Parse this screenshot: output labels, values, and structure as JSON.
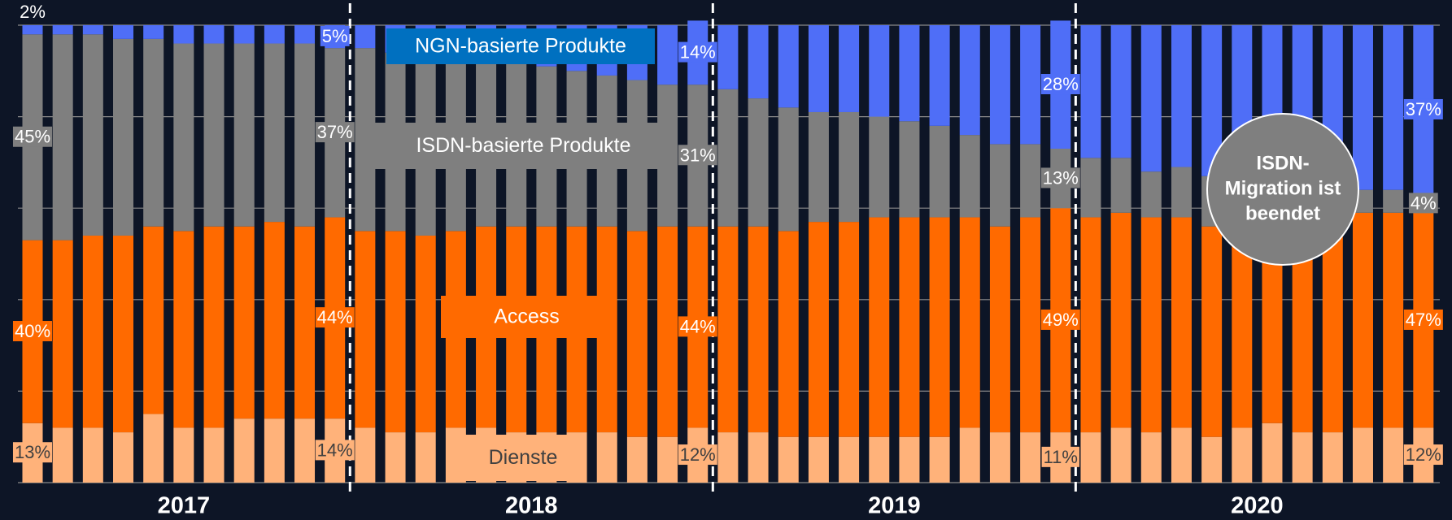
{
  "chart_data": {
    "type": "bar",
    "stacked": true,
    "categories": [
      null,
      null,
      null,
      null,
      null,
      null,
      null,
      null,
      null,
      null,
      null,
      null,
      null,
      null,
      null,
      null,
      null,
      null,
      null,
      null,
      null,
      null,
      null,
      null,
      null,
      null,
      null,
      null,
      null,
      null,
      null,
      null,
      null,
      null,
      null,
      null,
      null,
      null,
      null,
      null,
      null,
      null,
      null,
      null,
      null,
      null,
      null
    ],
    "series": [
      {
        "name": "Dienste",
        "color": "#ffb27a",
        "label_text_color": "#404040",
        "values": [
          13,
          12,
          12,
          11,
          15,
          12,
          12,
          14,
          14,
          14,
          14,
          12,
          11,
          11,
          12,
          12,
          11,
          11,
          11,
          11,
          10,
          10,
          12,
          11,
          11,
          10,
          10,
          10,
          10,
          10,
          10,
          12,
          11,
          11,
          11,
          11,
          12,
          11,
          12,
          10,
          12,
          13,
          11,
          11,
          12,
          12,
          12
        ],
        "value_labels": [
          "13%",
          null,
          null,
          null,
          null,
          null,
          null,
          null,
          null,
          null,
          "14%",
          null,
          null,
          null,
          null,
          null,
          null,
          null,
          null,
          null,
          null,
          null,
          "12%",
          null,
          null,
          null,
          null,
          null,
          null,
          null,
          null,
          null,
          null,
          null,
          "11%",
          null,
          null,
          null,
          null,
          null,
          null,
          null,
          null,
          null,
          null,
          null,
          "12%"
        ]
      },
      {
        "name": "Access",
        "color": "#ff6a00",
        "label_text_color": "#ffffff",
        "values": [
          40,
          41,
          42,
          43,
          41,
          43,
          44,
          42,
          43,
          42,
          44,
          43,
          44,
          43,
          43,
          44,
          45,
          45,
          45,
          45,
          45,
          46,
          44,
          45,
          45,
          45,
          47,
          47,
          48,
          48,
          48,
          46,
          45,
          47,
          49,
          47,
          47,
          47,
          46,
          46,
          46,
          44,
          45,
          46,
          47,
          47,
          47
        ],
        "value_labels": [
          "40%",
          null,
          null,
          null,
          null,
          null,
          null,
          null,
          null,
          null,
          "44%",
          null,
          null,
          null,
          null,
          null,
          null,
          null,
          null,
          null,
          null,
          null,
          "44%",
          null,
          null,
          null,
          null,
          null,
          null,
          null,
          null,
          null,
          null,
          null,
          "49%",
          null,
          null,
          null,
          null,
          null,
          null,
          null,
          null,
          null,
          null,
          null,
          "47%"
        ]
      },
      {
        "name": "ISDN-basierte Produkte",
        "color": "#7f7f7f",
        "label_text_color": "#ffffff",
        "values": [
          45,
          45,
          44,
          43,
          41,
          41,
          40,
          40,
          39,
          40,
          37,
          40,
          39,
          40,
          38,
          36,
          36,
          35,
          34,
          33,
          33,
          31,
          31,
          30,
          28,
          27,
          24,
          24,
          22,
          21,
          20,
          18,
          18,
          16,
          13,
          13,
          12,
          10,
          11,
          11,
          8,
          9,
          9,
          8,
          5,
          5,
          4
        ],
        "value_labels": [
          "45%",
          null,
          null,
          null,
          null,
          null,
          null,
          null,
          null,
          null,
          "37%",
          null,
          null,
          null,
          null,
          null,
          null,
          null,
          null,
          null,
          null,
          null,
          "31%",
          null,
          null,
          null,
          null,
          null,
          null,
          null,
          null,
          null,
          null,
          null,
          "13%",
          null,
          null,
          null,
          null,
          null,
          null,
          null,
          null,
          null,
          null,
          null,
          "4%"
        ]
      },
      {
        "name": "NGN-basierte Produkte",
        "color": "#4f6ef7",
        "legend_color": "#0070c0",
        "label_text_color": "#ffffff",
        "values": [
          2,
          2,
          2,
          3,
          3,
          4,
          4,
          4,
          4,
          4,
          5,
          5,
          6,
          6,
          7,
          8,
          8,
          9,
          10,
          11,
          12,
          13,
          14,
          14,
          16,
          18,
          19,
          19,
          20,
          21,
          22,
          24,
          26,
          26,
          28,
          29,
          29,
          32,
          31,
          33,
          34,
          34,
          35,
          35,
          36,
          36,
          37
        ],
        "value_labels": [
          "2%",
          null,
          null,
          null,
          null,
          null,
          null,
          null,
          null,
          null,
          "5%",
          null,
          null,
          null,
          null,
          null,
          null,
          null,
          null,
          null,
          null,
          null,
          "14%",
          null,
          null,
          null,
          null,
          null,
          null,
          null,
          null,
          null,
          null,
          null,
          "28%",
          null,
          null,
          null,
          null,
          null,
          null,
          null,
          null,
          null,
          null,
          null,
          "37%"
        ]
      }
    ],
    "ylim": [
      0,
      100
    ],
    "yticks": [
      0,
      20,
      40,
      60,
      80,
      100
    ],
    "grid": true,
    "years": [
      "2017",
      "2018",
      "2019",
      "2020"
    ],
    "callout": [
      "ISDN-",
      "Migration ist",
      "beendet"
    ]
  }
}
